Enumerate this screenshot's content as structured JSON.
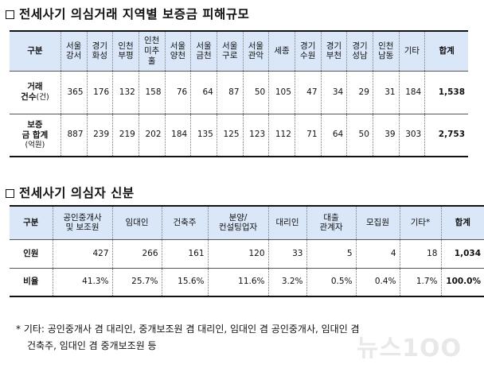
{
  "section1": {
    "title": "전세사기 의심거래 지역별 보증금 피해규모",
    "header_label": "구분",
    "regions": [
      [
        "서울",
        "강서"
      ],
      [
        "경기",
        "화성"
      ],
      [
        "인천",
        "부평"
      ],
      [
        "인천",
        "미추",
        "홀"
      ],
      [
        "서울",
        "양천"
      ],
      [
        "서울",
        "금천"
      ],
      [
        "서울",
        "구로"
      ],
      [
        "서울",
        "관악"
      ],
      [
        "세종"
      ],
      [
        "경기",
        "수원"
      ],
      [
        "경기",
        "부천"
      ],
      [
        "경기",
        "성남"
      ],
      [
        "인천",
        "남동"
      ],
      [
        "기타"
      ]
    ],
    "total_label": "합계",
    "rows": [
      {
        "label": [
          "거래",
          "건수"
        ],
        "unit": "(건)",
        "values": [
          "365",
          "176",
          "132",
          "158",
          "76",
          "64",
          "87",
          "50",
          "105",
          "47",
          "34",
          "29",
          "31",
          "184"
        ],
        "total": "1,538"
      },
      {
        "label": [
          "보증",
          "금 합계"
        ],
        "unit": "(억원)",
        "values": [
          "887",
          "239",
          "219",
          "202",
          "184",
          "135",
          "125",
          "123",
          "112",
          "71",
          "64",
          "50",
          "39",
          "303"
        ],
        "total": "2,753"
      }
    ]
  },
  "section2": {
    "title": "전세사기 의심자 신분",
    "header_label": "구분",
    "categories": [
      [
        "공인중개사",
        "및 보조원"
      ],
      [
        "임대인"
      ],
      [
        "건축주"
      ],
      [
        "분양/",
        "컨설팅업자"
      ],
      [
        "대리인"
      ],
      [
        "대출",
        "관계자"
      ],
      [
        "모집원"
      ],
      [
        "기타*"
      ]
    ],
    "total_label": "합계",
    "rows": [
      {
        "label": "인원",
        "values": [
          "427",
          "266",
          "161",
          "120",
          "33",
          "5",
          "4",
          "18"
        ],
        "total": "1,034"
      },
      {
        "label": "비율",
        "values": [
          "41.3%",
          "25.7%",
          "15.6%",
          "11.6%",
          "3.2%",
          "0.5%",
          "0.4%",
          "1.7%"
        ],
        "total": "100.0%"
      }
    ]
  },
  "footnote": {
    "line1": "* 기타: 공인중개사 겸 대리인, 중개보조원 겸 대리인, 임대인 겸 공인중개사, 임대인 겸",
    "line2": "건축주, 임대인 겸 중개보조원 등"
  },
  "watermark": "뉴스1OO",
  "icons": {
    "section_marker": "square-box-icon"
  }
}
